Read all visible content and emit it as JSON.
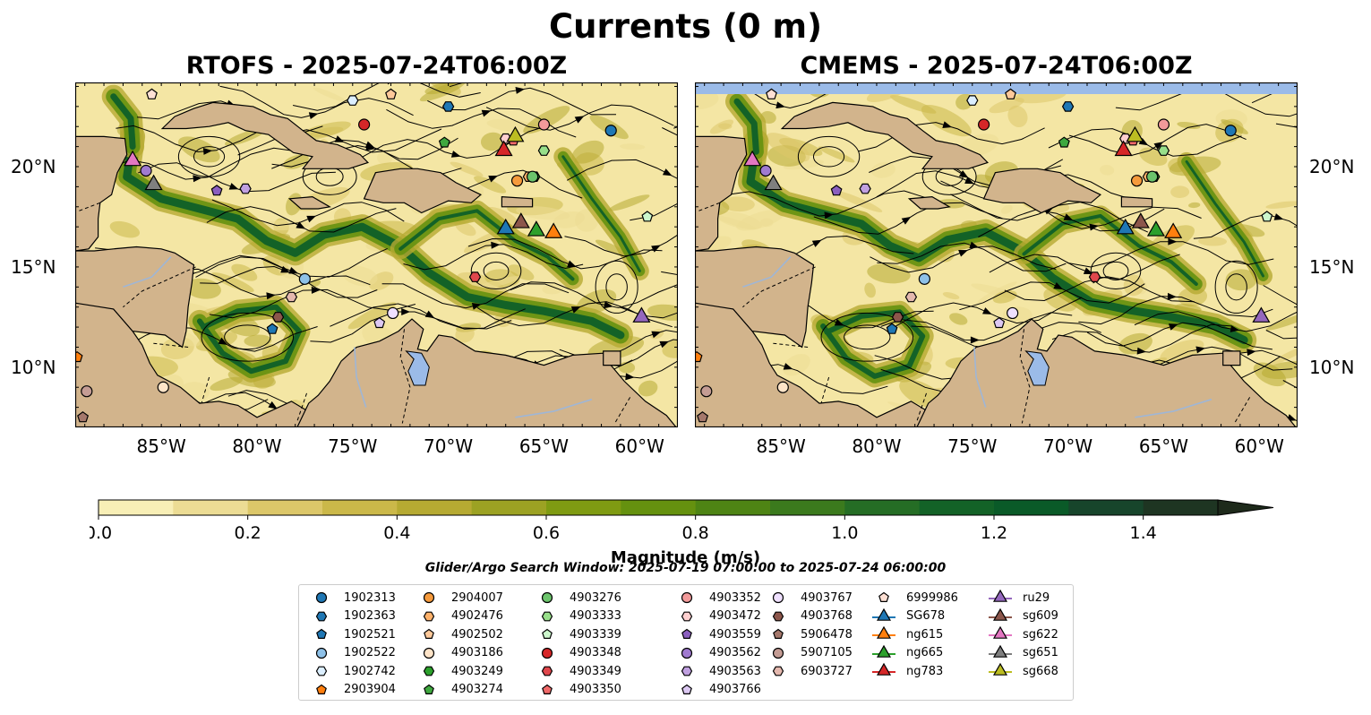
{
  "title": "Currents (0 m)",
  "panels": [
    {
      "title": "RTOFS - 2025-07-24T06:00Z"
    },
    {
      "title": "CMEMS - 2025-07-24T06:00Z"
    }
  ],
  "axes": {
    "lon_ticks": [
      "85°W",
      "80°W",
      "75°W",
      "70°W",
      "65°W",
      "60°W"
    ],
    "lon_tick_values": [
      -85,
      -80,
      -75,
      -70,
      -65,
      -60
    ],
    "lat_ticks": [
      "20°N",
      "15°N",
      "10°N"
    ],
    "lat_tick_values": [
      20,
      15,
      10
    ],
    "lon_range": [
      -89.5,
      -58.0
    ],
    "lat_range": [
      7.0,
      24.2
    ]
  },
  "colorbar": {
    "label": "Magnitude (m/s)",
    "ticks": [
      "0.0",
      "0.2",
      "0.4",
      "0.6",
      "0.8",
      "1.0",
      "1.2",
      "1.4"
    ],
    "tick_values": [
      0.0,
      0.2,
      0.4,
      0.6,
      0.8,
      1.0,
      1.2,
      1.4
    ],
    "range": [
      0.0,
      1.5
    ],
    "extend": "max",
    "colors": [
      "#f8efb6",
      "#ecdc94",
      "#dcc769",
      "#cbb849",
      "#b6aa32",
      "#9ca223",
      "#7f9b12",
      "#65910f",
      "#4e8414",
      "#3b7a1d",
      "#256d25",
      "#136227",
      "#0a5a28",
      "#17452b",
      "#1e3522",
      "#1e2a1b"
    ]
  },
  "search_window": "Glider/Argo Search Window: 2025-07-19 07:00:00 to 2025-07-24 06:00:00",
  "legend": {
    "columns": [
      [
        {
          "label": "1902313",
          "marker": "circle",
          "color": "#1f77b4"
        },
        {
          "label": "1902363",
          "marker": "hexagon",
          "color": "#1f77b4"
        },
        {
          "label": "1902521",
          "marker": "pentagon",
          "color": "#1f77b4"
        },
        {
          "label": "1902522",
          "marker": "circle",
          "color": "#8ec1e8"
        },
        {
          "label": "1902742",
          "marker": "hexagon",
          "color": "#dcefff"
        },
        {
          "label": "2903904",
          "marker": "pentagon",
          "color": "#ff7f0e"
        }
      ],
      [
        {
          "label": "2904007",
          "marker": "circle",
          "color": "#f59a3c"
        },
        {
          "label": "4902476",
          "marker": "hexagon",
          "color": "#ffb26b"
        },
        {
          "label": "4902502",
          "marker": "pentagon",
          "color": "#ffc99a"
        },
        {
          "label": "4903186",
          "marker": "circle",
          "color": "#ffe4c8"
        },
        {
          "label": "4903249",
          "marker": "hexagon",
          "color": "#2ca02c"
        },
        {
          "label": "4903274",
          "marker": "pentagon",
          "color": "#3fa83f"
        }
      ],
      [
        {
          "label": "4903276",
          "marker": "circle",
          "color": "#6cc46c"
        },
        {
          "label": "4903333",
          "marker": "hexagon",
          "color": "#98df8a"
        },
        {
          "label": "4903339",
          "marker": "pentagon",
          "color": "#ccf7cc"
        },
        {
          "label": "4903348",
          "marker": "circle",
          "color": "#d62728"
        },
        {
          "label": "4903349",
          "marker": "hexagon",
          "color": "#e0474c"
        },
        {
          "label": "4903350",
          "marker": "pentagon",
          "color": "#f06969"
        }
      ],
      [
        {
          "label": "4903352",
          "marker": "circle",
          "color": "#f29a9a"
        },
        {
          "label": "4903472",
          "marker": "hexagon",
          "color": "#ffd0d0"
        },
        {
          "label": "4903559",
          "marker": "pentagon",
          "color": "#8b5fbf"
        },
        {
          "label": "4903562",
          "marker": "circle",
          "color": "#a07ad0"
        },
        {
          "label": "4903563",
          "marker": "hexagon",
          "color": "#c0a0e0"
        },
        {
          "label": "4903766",
          "marker": "pentagon",
          "color": "#dcc8f2"
        }
      ],
      [
        {
          "label": "4903767",
          "marker": "circle",
          "color": "#efe0ff"
        },
        {
          "label": "4903768",
          "marker": "hexagon",
          "color": "#8c564b"
        },
        {
          "label": "5906478",
          "marker": "pentagon",
          "color": "#a5786c"
        },
        {
          "label": "5907105",
          "marker": "circle",
          "color": "#c49c94"
        },
        {
          "label": "6903727",
          "marker": "hexagon",
          "color": "#e4b8ae"
        }
      ],
      [
        {
          "label": "6999986",
          "marker": "pentagon",
          "color": "#ffe0d4"
        },
        {
          "label": "SG678",
          "marker": "triangle",
          "color": "#1f77b4"
        },
        {
          "label": "ng615",
          "marker": "triangle",
          "color": "#ff7f0e"
        },
        {
          "label": "ng665",
          "marker": "triangle",
          "color": "#2ca02c"
        },
        {
          "label": "ng783",
          "marker": "triangle",
          "color": "#d62728"
        }
      ],
      [
        {
          "label": "ru29",
          "marker": "triangle",
          "color": "#9467bd"
        },
        {
          "label": "sg609",
          "marker": "triangle",
          "color": "#8c564b"
        },
        {
          "label": "sg622",
          "marker": "triangle",
          "color": "#e377c2"
        },
        {
          "label": "sg651",
          "marker": "triangle",
          "color": "#7f7f7f"
        },
        {
          "label": "sg668",
          "marker": "triangle",
          "color": "#bcbd22"
        }
      ]
    ]
  },
  "platforms": [
    {
      "label": "1902313",
      "lon": -61.5,
      "lat": 21.8,
      "marker": "circle",
      "color": "#1f77b4"
    },
    {
      "label": "1902363",
      "lon": -70.0,
      "lat": 23.0,
      "marker": "hexagon",
      "color": "#1f77b4"
    },
    {
      "label": "1902521",
      "lon": -79.2,
      "lat": 11.9,
      "marker": "pentagon",
      "color": "#1f77b4"
    },
    {
      "label": "1902522",
      "lon": -77.5,
      "lat": 14.4,
      "marker": "circle",
      "color": "#8ec1e8"
    },
    {
      "label": "1902742",
      "lon": -75.0,
      "lat": 23.3,
      "marker": "hexagon",
      "color": "#dcefff"
    },
    {
      "label": "2903904",
      "lon": -89.4,
      "lat": 10.5,
      "marker": "pentagon",
      "color": "#ff7f0e"
    },
    {
      "label": "2904007",
      "lon": -66.4,
      "lat": 19.3,
      "marker": "circle",
      "color": "#f59a3c"
    },
    {
      "label": "4902476",
      "lon": -65.8,
      "lat": 19.5,
      "marker": "hexagon",
      "color": "#ffb26b"
    },
    {
      "label": "4902502",
      "lon": -73.0,
      "lat": 23.6,
      "marker": "pentagon",
      "color": "#ffc99a"
    },
    {
      "label": "4903186",
      "lon": -84.9,
      "lat": 9.0,
      "marker": "circle",
      "color": "#ffe4c8"
    },
    {
      "label": "4903249",
      "lon": -65.5,
      "lat": 19.5,
      "marker": "hexagon",
      "color": "#2ca02c"
    },
    {
      "label": "4903274",
      "lon": -70.2,
      "lat": 21.2,
      "marker": "pentagon",
      "color": "#3fa83f"
    },
    {
      "label": "4903276",
      "lon": -65.6,
      "lat": 19.5,
      "marker": "circle",
      "color": "#6cc46c"
    },
    {
      "label": "4903333",
      "lon": -65.0,
      "lat": 20.8,
      "marker": "hexagon",
      "color": "#98df8a"
    },
    {
      "label": "4903339",
      "lon": -59.6,
      "lat": 17.5,
      "marker": "pentagon",
      "color": "#ccf7cc"
    },
    {
      "label": "4903348",
      "lon": -74.4,
      "lat": 22.1,
      "marker": "circle",
      "color": "#d62728"
    },
    {
      "label": "4903349",
      "lon": -68.6,
      "lat": 14.5,
      "marker": "hexagon",
      "color": "#e0474c"
    },
    {
      "label": "4903350",
      "lon": -66.6,
      "lat": 21.3,
      "marker": "pentagon",
      "color": "#f06969"
    },
    {
      "label": "4903352",
      "lon": -65.0,
      "lat": 22.1,
      "marker": "circle",
      "color": "#f29a9a"
    },
    {
      "label": "4903472",
      "lon": -67.0,
      "lat": 21.4,
      "marker": "hexagon",
      "color": "#ffd0d0"
    },
    {
      "label": "4903559",
      "lon": -82.1,
      "lat": 18.8,
      "marker": "pentagon",
      "color": "#8b5fbf"
    },
    {
      "label": "4903562",
      "lon": -85.8,
      "lat": 19.8,
      "marker": "circle",
      "color": "#a07ad0"
    },
    {
      "label": "4903563",
      "lon": -80.6,
      "lat": 18.9,
      "marker": "hexagon",
      "color": "#c0a0e0"
    },
    {
      "label": "4903766",
      "lon": -73.6,
      "lat": 12.2,
      "marker": "pentagon",
      "color": "#dcc8f2"
    },
    {
      "label": "4903767",
      "lon": -72.9,
      "lat": 12.7,
      "marker": "circle",
      "color": "#efe0ff"
    },
    {
      "label": "4903768",
      "lon": -78.9,
      "lat": 12.5,
      "marker": "hexagon",
      "color": "#8c564b"
    },
    {
      "label": "5906478",
      "lon": -89.1,
      "lat": 7.5,
      "marker": "pentagon",
      "color": "#a5786c"
    },
    {
      "label": "5907105",
      "lon": -88.9,
      "lat": 8.8,
      "marker": "circle",
      "color": "#c49c94"
    },
    {
      "label": "6903727",
      "lon": -78.2,
      "lat": 13.5,
      "marker": "hexagon",
      "color": "#e4b8ae"
    },
    {
      "label": "6999986",
      "lon": -85.5,
      "lat": 23.6,
      "marker": "pentagon",
      "color": "#ffe0d4"
    },
    {
      "label": "SG678",
      "lon": -67.0,
      "lat": 16.9,
      "marker": "triangle",
      "color": "#1f77b4"
    },
    {
      "label": "ng615",
      "lon": -64.5,
      "lat": 16.7,
      "marker": "triangle",
      "color": "#ff7f0e"
    },
    {
      "label": "ng665",
      "lon": -65.4,
      "lat": 16.8,
      "marker": "triangle",
      "color": "#2ca02c"
    },
    {
      "label": "ng783",
      "lon": -67.1,
      "lat": 20.8,
      "marker": "triangle",
      "color": "#d62728"
    },
    {
      "label": "ru29",
      "lon": -59.9,
      "lat": 12.5,
      "marker": "triangle",
      "color": "#9467bd"
    },
    {
      "label": "sg609",
      "lon": -66.2,
      "lat": 17.2,
      "marker": "triangle",
      "color": "#8c564b"
    },
    {
      "label": "sg622",
      "lon": -86.5,
      "lat": 20.3,
      "marker": "triangle",
      "color": "#e377c2"
    },
    {
      "label": "sg651",
      "lon": -85.4,
      "lat": 19.1,
      "marker": "triangle",
      "color": "#7f7f7f"
    },
    {
      "label": "sg668",
      "lon": -66.5,
      "lat": 21.5,
      "marker": "triangle",
      "color": "#bcbd22"
    }
  ],
  "land_color": "#d2b48c",
  "lake_color": "#9bbbe8",
  "field_color": "#f4e6a4"
}
